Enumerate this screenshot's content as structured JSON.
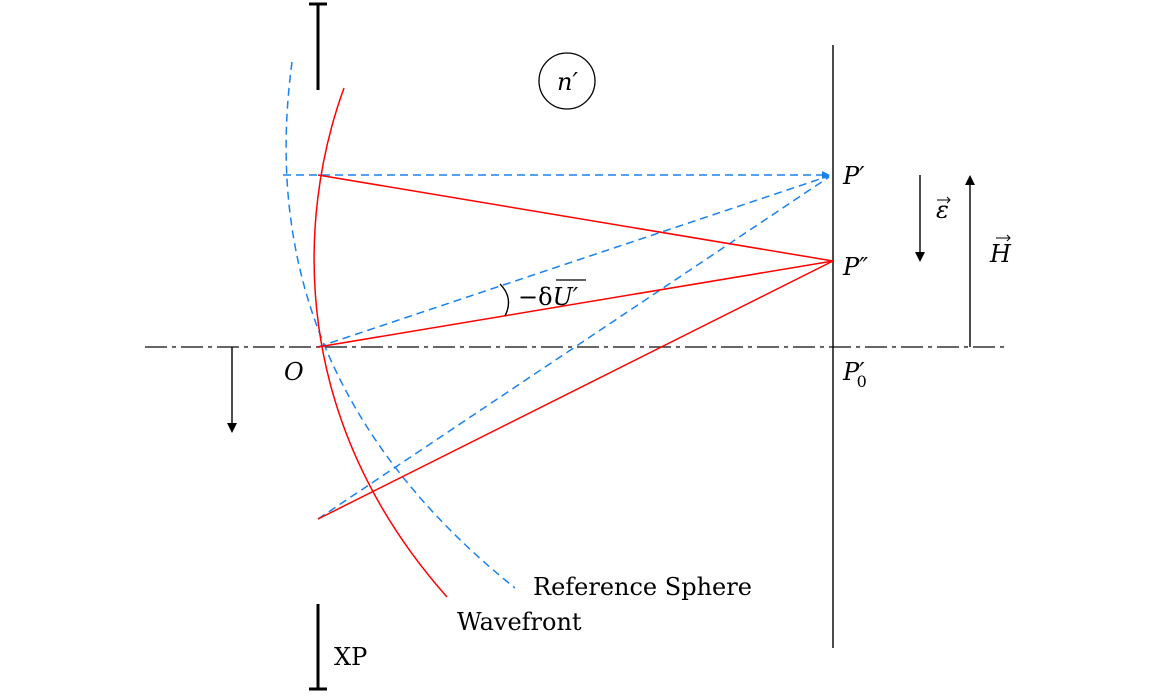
{
  "labels": {
    "medium": "n′",
    "p_prime": "P′",
    "p_double_prime": "P″",
    "p0_prime": "P′",
    "p0_sub": "0",
    "origin": "O",
    "epsilon": "ε",
    "height": "H",
    "angle_prefix": "−δ",
    "angle_var": "U′",
    "reference_sphere": "Reference Sphere",
    "wavefront": "Wavefront",
    "exit_pupil": "XP"
  },
  "colors": {
    "wavefront": "#ff0000",
    "reference": "#1a82f0",
    "ink": "#000000",
    "axis": "#333333"
  }
}
